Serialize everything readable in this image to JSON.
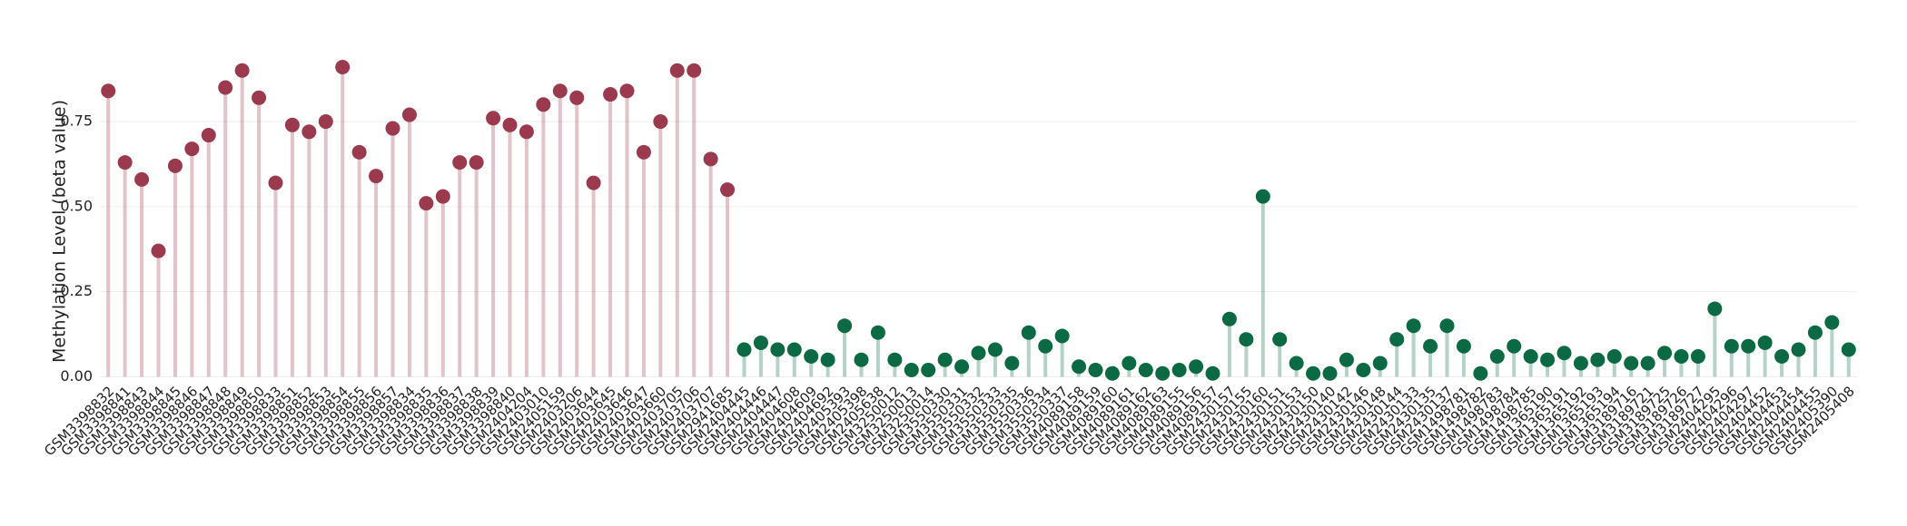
{
  "chart_data": {
    "type": "lollipop",
    "y_label": "Methylation Level (beta value)",
    "categories": [
      "GSM3398832",
      "GSM3398841",
      "GSM3398843",
      "GSM3398844",
      "GSM3398845",
      "GSM3398846",
      "GSM3398847",
      "GSM3398848",
      "GSM3398849",
      "GSM3398850",
      "GSM3398833",
      "GSM3398851",
      "GSM3398852",
      "GSM3398853",
      "GSM3398854",
      "GSM3398855",
      "GSM3398856",
      "GSM3398857",
      "GSM3398834",
      "GSM3398835",
      "GSM3398836",
      "GSM3398837",
      "GSM3398838",
      "GSM3398839",
      "GSM3398840",
      "GSM2404204",
      "GSM2403010",
      "GSM2405159",
      "GSM2403206",
      "GSM2403644",
      "GSM2403645",
      "GSM2403646",
      "GSM2403647",
      "GSM2403660",
      "GSM2403705",
      "GSM2403706",
      "GSM2403707",
      "GSM2941685",
      "GSM2404445",
      "GSM2404446",
      "GSM2404447",
      "GSM2404608",
      "GSM2404609",
      "GSM2404692",
      "GSM2405393",
      "GSM2405398",
      "GSM2405638",
      "GSM3250012",
      "GSM3250013",
      "GSM3250014",
      "GSM3550330",
      "GSM3550331",
      "GSM3550332",
      "GSM3550333",
      "GSM3550335",
      "GSM3550336",
      "GSM3550334",
      "GSM3550337",
      "GSM4089158",
      "GSM4089159",
      "GSM4089160",
      "GSM4089161",
      "GSM4089162",
      "GSM4089163",
      "GSM4089155",
      "GSM4089156",
      "GSM4089157",
      "GSM2430157",
      "GSM2430155",
      "GSM2430160",
      "GSM2430151",
      "GSM2430153",
      "GSM2430150",
      "GSM2430140",
      "GSM2430142",
      "GSM2430146",
      "GSM2430148",
      "GSM2430144",
      "GSM2430133",
      "GSM2430135",
      "GSM2430137",
      "GSM1498781",
      "GSM1498782",
      "GSM1498783",
      "GSM1498784",
      "GSM1498785",
      "GSM1365190",
      "GSM1365191",
      "GSM1365192",
      "GSM1365193",
      "GSM1365194",
      "GSM3189716",
      "GSM3189721",
      "GSM3189725",
      "GSM3189726",
      "GSM3189727",
      "GSM2404295",
      "GSM2404296",
      "GSM2404297",
      "GSM2404452",
      "GSM2404453",
      "GSM2404454",
      "GSM2404455",
      "GSM2405390",
      "GSM2405408"
    ],
    "series": [
      {
        "color": "#9b3a4e",
        "values": [
          0.84,
          0.63,
          0.58,
          0.37,
          0.62,
          0.67,
          0.71,
          0.85,
          0.9,
          0.82,
          0.57,
          0.74,
          0.72,
          0.75,
          0.91,
          0.66,
          0.59,
          0.73,
          0.77,
          0.51,
          0.53,
          0.63,
          0.63,
          0.76,
          0.74,
          0.72,
          0.8,
          0.84,
          0.82,
          0.57,
          0.83,
          0.84,
          0.66,
          0.75,
          0.9,
          0.9,
          0.64,
          0.55,
          null,
          null,
          null,
          null,
          null,
          null,
          null,
          null,
          null,
          null,
          null,
          null,
          null,
          null,
          null,
          null,
          null,
          null,
          null,
          null,
          null,
          null,
          null,
          null,
          null,
          null,
          null,
          null,
          null,
          null,
          null,
          null,
          null,
          null,
          null,
          null,
          null,
          null,
          null,
          null,
          null,
          null,
          null,
          null,
          null,
          null,
          null,
          null,
          null,
          null,
          null,
          null,
          null,
          null,
          null,
          null,
          null,
          null,
          null,
          null,
          null,
          null,
          null,
          null,
          null,
          null,
          null
        ]
      },
      {
        "color": "#0b6a43",
        "values": [
          null,
          null,
          null,
          null,
          null,
          null,
          null,
          null,
          null,
          null,
          null,
          null,
          null,
          null,
          null,
          null,
          null,
          null,
          null,
          null,
          null,
          null,
          null,
          null,
          null,
          null,
          null,
          null,
          null,
          null,
          null,
          null,
          null,
          null,
          null,
          null,
          null,
          null,
          0.08,
          0.1,
          0.08,
          0.08,
          0.06,
          0.05,
          0.15,
          0.05,
          0.13,
          0.05,
          0.02,
          0.02,
          0.05,
          0.03,
          0.07,
          0.08,
          0.04,
          0.13,
          0.09,
          0.12,
          0.03,
          0.02,
          0.01,
          0.04,
          0.02,
          0.01,
          0.02,
          0.03,
          0.01,
          0.17,
          0.11,
          0.53,
          0.11,
          0.04,
          0.01,
          0.01,
          0.05,
          0.02,
          0.04,
          0.11,
          0.15,
          0.09,
          0.15,
          0.09,
          0.01,
          0.06,
          0.09,
          0.06,
          0.05,
          0.07,
          0.04,
          0.05,
          0.06,
          0.04,
          0.04,
          0.07,
          0.06,
          0.06,
          0.2,
          0.09,
          0.09,
          0.1,
          0.06,
          0.08,
          0.13,
          0.16,
          0.08
        ]
      }
    ],
    "ylim": [
      -0.02,
      0.95
    ],
    "yticks": [
      {
        "value": 0,
        "label": "0.00"
      },
      {
        "value": 0.25,
        "label": "0.25"
      },
      {
        "value": 0.5,
        "label": "0.50"
      },
      {
        "value": 0.75,
        "label": "0.75"
      }
    ],
    "grid": true
  }
}
